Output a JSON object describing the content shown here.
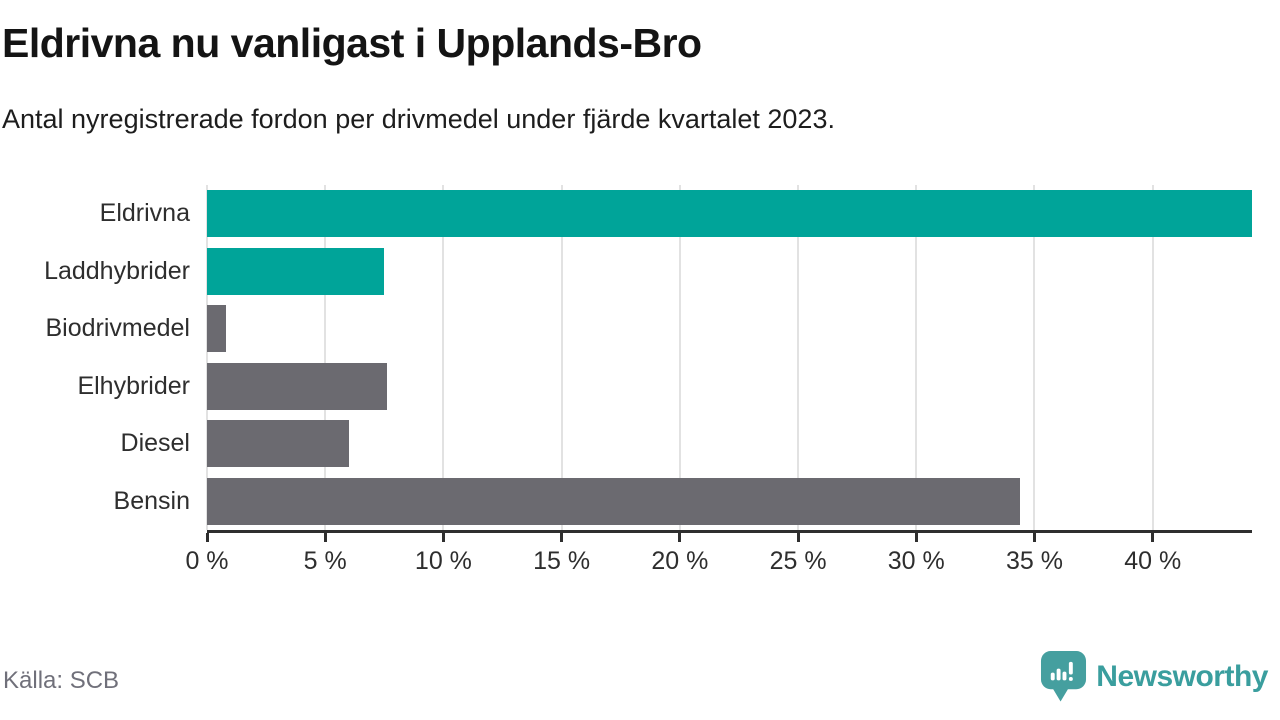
{
  "header": {
    "title": "Eldrivna nu vanligast i Upplands-Bro",
    "subtitle": "Antal nyregistrerade fordon per drivmedel under fjärde kvartalet 2023."
  },
  "footer": {
    "source": "Källa: SCB",
    "brand": "Newsworthy"
  },
  "colors": {
    "highlight_teal": "#00a499",
    "neutral_gray": "#6b6a70",
    "gridline": "#e2e2e2",
    "axis": "#2f2f2f",
    "logo_teal": "#459f9f",
    "wordmark_teal": "#3a9e9e"
  },
  "chart_data": {
    "type": "bar",
    "orientation": "horizontal",
    "title": "Eldrivna nu vanligast i Upplands-Bro",
    "subtitle": "Antal nyregistrerade fordon per drivmedel under fjärde kvartalet 2023.",
    "categories": [
      "Eldrivna",
      "Laddhybrider",
      "Biodrivmedel",
      "Elhybrider",
      "Diesel",
      "Bensin"
    ],
    "values": [
      44.2,
      7.5,
      0.8,
      7.6,
      6.0,
      34.4
    ],
    "unit": "%",
    "colors": [
      "#00a499",
      "#00a499",
      "#6b6a70",
      "#6b6a70",
      "#6b6a70",
      "#6b6a70"
    ],
    "highlighted_categories": [
      "Eldrivna",
      "Laddhybrider"
    ],
    "xlim": [
      0,
      44.2
    ],
    "x_ticks": [
      0,
      5,
      10,
      15,
      20,
      25,
      30,
      35,
      40
    ],
    "x_tick_labels": [
      "0 %",
      "5 %",
      "10 %",
      "15 %",
      "20 %",
      "25 %",
      "30 %",
      "35 %",
      "40 %"
    ],
    "grid": "vertical",
    "legend": "none",
    "source": "Källa: SCB"
  }
}
